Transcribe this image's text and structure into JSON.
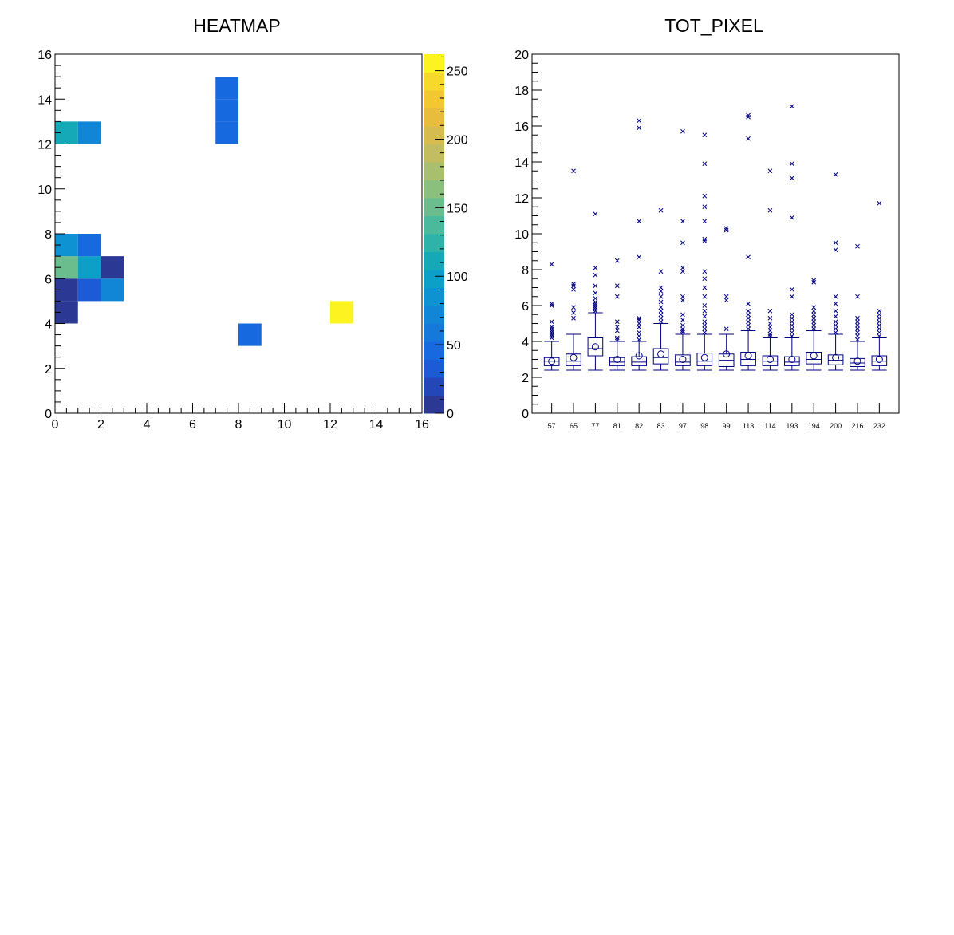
{
  "chart_data": [
    {
      "type": "heatmap",
      "title": "HEATMAP",
      "xlabel": "",
      "ylabel": "",
      "xlim": [
        0,
        16
      ],
      "ylim": [
        0,
        16
      ],
      "x_ticks": [
        "0",
        "2",
        "4",
        "6",
        "8",
        "10",
        "12",
        "14",
        "16"
      ],
      "y_ticks": [
        "0",
        "2",
        "4",
        "6",
        "8",
        "10",
        "12",
        "14",
        "16"
      ],
      "cells": [
        {
          "x": 0,
          "y": 4,
          "value": 10
        },
        {
          "x": 0,
          "y": 5,
          "value": 10
        },
        {
          "x": 1,
          "y": 5,
          "value": 30
        },
        {
          "x": 2,
          "y": 5,
          "value": 70
        },
        {
          "x": 0,
          "y": 6,
          "value": 150
        },
        {
          "x": 1,
          "y": 6,
          "value": 100
        },
        {
          "x": 2,
          "y": 6,
          "value": 5
        },
        {
          "x": 0,
          "y": 7,
          "value": 80
        },
        {
          "x": 1,
          "y": 7,
          "value": 45
        },
        {
          "x": 0,
          "y": 12,
          "value": 115
        },
        {
          "x": 1,
          "y": 12,
          "value": 75
        },
        {
          "x": 7,
          "y": 12,
          "value": 45
        },
        {
          "x": 7,
          "y": 13,
          "value": 45
        },
        {
          "x": 7,
          "y": 14,
          "value": 45
        },
        {
          "x": 8,
          "y": 3,
          "value": 45
        },
        {
          "x": 12,
          "y": 4,
          "value": 262
        }
      ],
      "colorbar": {
        "min": 0,
        "max": 262,
        "ticks": [
          "0",
          "50",
          "100",
          "150",
          "200",
          "250"
        ],
        "tick_values": [
          0,
          50,
          100,
          150,
          200,
          250
        ],
        "levels": 20,
        "palette": [
          "#2b3994",
          "#2346b8",
          "#1d5bd6",
          "#1669de",
          "#1579dc",
          "#1186d6",
          "#0e92d1",
          "#0c9fc8",
          "#15a9b8",
          "#2db3a8",
          "#4bb99b",
          "#6bbd8d",
          "#8bbf7d",
          "#a8bf6d",
          "#c2bd5e",
          "#d6bb4f",
          "#e8bd3d",
          "#f2c732",
          "#f6d92a",
          "#fcf321"
        ]
      }
    },
    {
      "type": "box",
      "title": "TOT_PIXEL",
      "xlabel": "",
      "ylabel": "",
      "ylim": [
        0,
        20
      ],
      "y_ticks": [
        "0",
        "2",
        "4",
        "6",
        "8",
        "10",
        "12",
        "14",
        "16",
        "18",
        "20"
      ],
      "color": "#000080",
      "categories": [
        "57",
        "65",
        "77",
        "81",
        "82",
        "83",
        "97",
        "98",
        "99",
        "113",
        "114",
        "193",
        "194",
        "200",
        "216",
        "232"
      ],
      "boxes": [
        {
          "min": 2.4,
          "q1": 2.65,
          "median": 2.9,
          "q3": 3.1,
          "max": 4.0,
          "mean": 2.9,
          "outliers": [
            4.2,
            4.3,
            4.4,
            4.5,
            4.6,
            4.7,
            4.8,
            5.1,
            6.0,
            6.1,
            8.3
          ]
        },
        {
          "min": 2.4,
          "q1": 2.65,
          "median": 2.9,
          "q3": 3.3,
          "max": 4.4,
          "mean": 3.1,
          "outliers": [
            5.3,
            5.6,
            5.9,
            6.9,
            7.1,
            7.2,
            13.5
          ]
        },
        {
          "min": 2.4,
          "q1": 3.2,
          "median": 3.6,
          "q3": 4.2,
          "max": 5.6,
          "mean": 3.7,
          "outliers": [
            5.7,
            5.8,
            5.9,
            6.0,
            6.1,
            6.2,
            6.4,
            6.7,
            7.1,
            7.7,
            8.1,
            11.1
          ]
        },
        {
          "min": 2.4,
          "q1": 2.65,
          "median": 2.85,
          "q3": 3.1,
          "max": 4.0,
          "mean": 3.0,
          "outliers": [
            4.1,
            4.2,
            4.6,
            4.8,
            5.1,
            6.5,
            7.1,
            8.5
          ]
        },
        {
          "min": 2.4,
          "q1": 2.65,
          "median": 2.85,
          "q3": 3.15,
          "max": 4.0,
          "mean": 3.2,
          "outliers": [
            4.1,
            4.3,
            4.5,
            4.8,
            5.0,
            5.2,
            5.3,
            8.7,
            10.7,
            15.9,
            16.3
          ]
        },
        {
          "min": 2.4,
          "q1": 2.75,
          "median": 3.1,
          "q3": 3.6,
          "max": 5.0,
          "mean": 3.3,
          "outliers": [
            5.1,
            5.3,
            5.5,
            5.7,
            5.9,
            6.2,
            6.5,
            6.8,
            7.0,
            7.9,
            11.3
          ]
        },
        {
          "min": 2.4,
          "q1": 2.65,
          "median": 2.85,
          "q3": 3.25,
          "max": 4.4,
          "mean": 3.0,
          "outliers": [
            4.5,
            4.6,
            4.7,
            4.9,
            5.2,
            5.5,
            6.3,
            6.5,
            7.9,
            8.1,
            9.5,
            10.7,
            15.7
          ]
        },
        {
          "min": 2.4,
          "q1": 2.65,
          "median": 2.9,
          "q3": 3.35,
          "max": 4.4,
          "mean": 3.1,
          "outliers": [
            4.5,
            4.7,
            4.9,
            5.1,
            5.4,
            5.7,
            6.0,
            6.5,
            7.0,
            7.5,
            7.9,
            9.6,
            9.7,
            10.7,
            11.5,
            12.1,
            13.9,
            15.5
          ]
        },
        {
          "min": 2.4,
          "q1": 2.6,
          "median": 2.95,
          "q3": 3.3,
          "max": 4.4,
          "mean": 3.3,
          "outliers": [
            4.7,
            6.3,
            6.5,
            10.2,
            10.3
          ]
        },
        {
          "min": 2.4,
          "q1": 2.65,
          "median": 3.0,
          "q3": 3.4,
          "max": 4.6,
          "mean": 3.2,
          "outliers": [
            4.7,
            4.9,
            5.1,
            5.3,
            5.5,
            5.7,
            6.1,
            8.7,
            15.3,
            16.5,
            16.6
          ]
        },
        {
          "min": 2.4,
          "q1": 2.65,
          "median": 2.9,
          "q3": 3.2,
          "max": 4.2,
          "mean": 3.0,
          "outliers": [
            4.3,
            4.4,
            4.6,
            4.8,
            5.0,
            5.3,
            5.7,
            11.3,
            13.5
          ]
        },
        {
          "min": 2.4,
          "q1": 2.65,
          "median": 2.85,
          "q3": 3.15,
          "max": 4.2,
          "mean": 3.0,
          "outliers": [
            4.3,
            4.5,
            4.7,
            4.9,
            5.1,
            5.3,
            5.5,
            6.5,
            6.9,
            10.9,
            13.1,
            13.9,
            17.1
          ]
        },
        {
          "min": 2.4,
          "q1": 2.75,
          "median": 3.0,
          "q3": 3.4,
          "max": 4.6,
          "mean": 3.2,
          "outliers": [
            4.7,
            4.9,
            5.1,
            5.3,
            5.5,
            5.7,
            5.9,
            7.3,
            7.4
          ]
        },
        {
          "min": 2.4,
          "q1": 2.7,
          "median": 2.95,
          "q3": 3.25,
          "max": 4.4,
          "mean": 3.1,
          "outliers": [
            4.5,
            4.7,
            4.9,
            5.1,
            5.4,
            5.7,
            6.1,
            6.5,
            9.1,
            9.5,
            13.3
          ]
        },
        {
          "min": 2.4,
          "q1": 2.6,
          "median": 2.8,
          "q3": 3.05,
          "max": 4.0,
          "mean": 2.9,
          "outliers": [
            4.1,
            4.3,
            4.5,
            4.7,
            4.9,
            5.1,
            5.3,
            6.5,
            9.3
          ]
        },
        {
          "min": 2.4,
          "q1": 2.65,
          "median": 2.9,
          "q3": 3.2,
          "max": 4.2,
          "mean": 3.0,
          "outliers": [
            4.3,
            4.5,
            4.7,
            4.9,
            5.1,
            5.3,
            5.5,
            5.7,
            11.7
          ]
        }
      ]
    }
  ]
}
